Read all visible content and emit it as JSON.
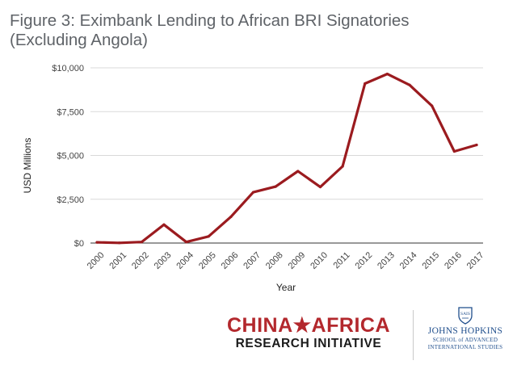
{
  "chart_data": {
    "type": "line",
    "title": "Figure 3: Eximbank Lending to African BRI Signatories (Excluding Angola)",
    "xlabel": "Year",
    "ylabel": "USD Millions",
    "x": [
      "2000",
      "2001",
      "2002",
      "2003",
      "2004",
      "2005",
      "2006",
      "2007",
      "2008",
      "2009",
      "2010",
      "2011",
      "2012",
      "2013",
      "2014",
      "2015",
      "2016",
      "2017"
    ],
    "series": [
      {
        "values": [
          40,
          10,
          60,
          1050,
          60,
          380,
          1500,
          2900,
          3220,
          4100,
          3200,
          4380,
          9100,
          9650,
          9020,
          7830,
          5230,
          5600
        ],
        "color": "#9b1b1f"
      }
    ],
    "ylim": [
      0,
      10000
    ],
    "yticks": [
      0,
      2500,
      5000,
      7500,
      10000
    ],
    "ytick_labels": [
      "$0",
      "$2,500",
      "$5,000",
      "$7,500",
      "$10,000"
    ],
    "grid": "horizontal",
    "legend": "none"
  },
  "logos": {
    "main_line1": "CHINA★AFRICA",
    "main_line2": "RESEARCH INITIATIVE",
    "jhu_shield": "SAIS",
    "jhu_name": "JOHNS HOPKINS",
    "jhu_sub1": "SCHOOL of ADVANCED",
    "jhu_sub2": "INTERNATIONAL STUDIES"
  }
}
